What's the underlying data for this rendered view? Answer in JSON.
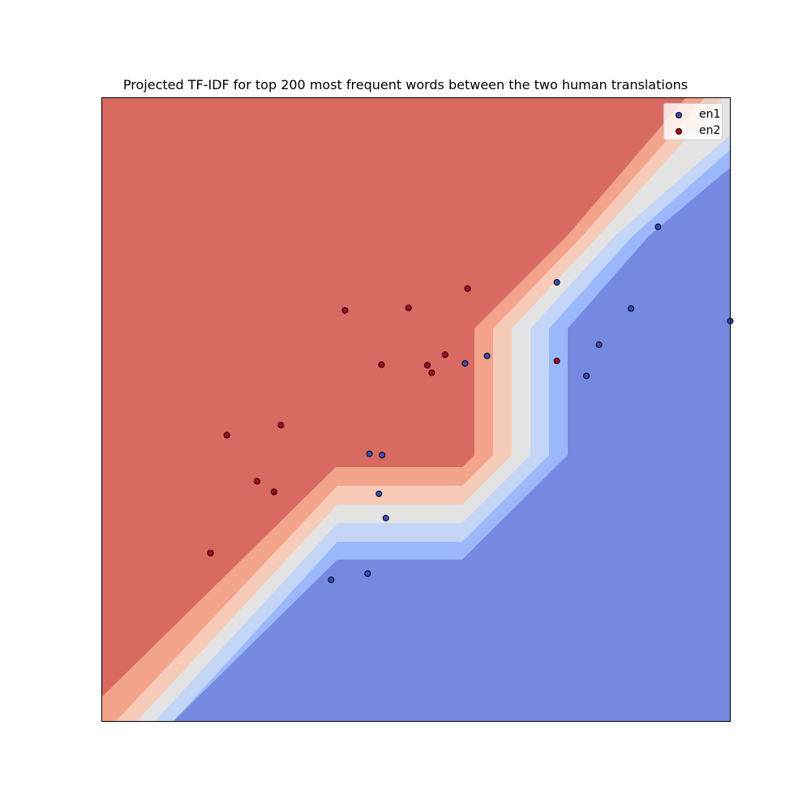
{
  "chart_data": {
    "type": "scatter",
    "title": "Projected TF-IDF for top 200 most frequent words between the two human translations",
    "xlabel": "",
    "ylabel": "",
    "xlim": [
      0,
      100
    ],
    "ylim": [
      0,
      100
    ],
    "axis_ticks": "hidden",
    "grid": false,
    "legend_position": "top-right",
    "background": "filled decision-boundary contour (coolwarm)",
    "contour_colors": [
      "#7689e0",
      "#9cb8fc",
      "#c4d6f7",
      "#e3e3e3",
      "#f6cbb8",
      "#f3a48b",
      "#d96a61"
    ],
    "series": [
      {
        "name": "en1",
        "color": "#3b4cc0",
        "points": [
          {
            "x": 88.5,
            "y": 79.3
          },
          {
            "x": 72.4,
            "y": 70.4
          },
          {
            "x": 84.2,
            "y": 66.2
          },
          {
            "x": 100.0,
            "y": 64.2
          },
          {
            "x": 79.1,
            "y": 60.4
          },
          {
            "x": 61.3,
            "y": 58.6
          },
          {
            "x": 57.8,
            "y": 57.4
          },
          {
            "x": 77.1,
            "y": 55.4
          },
          {
            "x": 42.6,
            "y": 42.9
          },
          {
            "x": 44.6,
            "y": 42.7
          },
          {
            "x": 44.1,
            "y": 36.5
          },
          {
            "x": 45.2,
            "y": 32.6
          },
          {
            "x": 42.3,
            "y": 23.7
          },
          {
            "x": 36.5,
            "y": 22.7
          }
        ]
      },
      {
        "name": "en2",
        "color": "#b40426",
        "points": [
          {
            "x": 58.2,
            "y": 69.4
          },
          {
            "x": 48.8,
            "y": 66.3
          },
          {
            "x": 38.7,
            "y": 65.9
          },
          {
            "x": 54.6,
            "y": 58.8
          },
          {
            "x": 44.5,
            "y": 57.2
          },
          {
            "x": 51.8,
            "y": 57.1
          },
          {
            "x": 52.5,
            "y": 55.9
          },
          {
            "x": 72.4,
            "y": 57.8
          },
          {
            "x": 28.5,
            "y": 47.5
          },
          {
            "x": 19.9,
            "y": 45.9
          },
          {
            "x": 24.7,
            "y": 38.5
          },
          {
            "x": 27.4,
            "y": 36.8
          },
          {
            "x": 17.3,
            "y": 27.0
          }
        ]
      }
    ]
  }
}
